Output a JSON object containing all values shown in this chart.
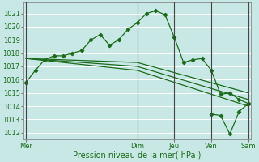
{
  "bg_color": "#c8e8e5",
  "grid_color": "#ffffff",
  "line_color": "#1a6b1a",
  "marker_color": "#1a6b1a",
  "xlabel": "Pression niveau de la mer( hPa )",
  "ylim": [
    1011.5,
    1021.8
  ],
  "yticks": [
    1012,
    1013,
    1014,
    1015,
    1016,
    1017,
    1018,
    1019,
    1020,
    1021
  ],
  "x_day_labels": [
    "Mer",
    "Dim",
    "Jeu",
    "Ven",
    "Sam"
  ],
  "x_day_positions": [
    0,
    12,
    16,
    20,
    24
  ],
  "series1_x": [
    0,
    1,
    2,
    3,
    4,
    5,
    6,
    7,
    8,
    9,
    10,
    11,
    12,
    13,
    14,
    15,
    16,
    17,
    18,
    19,
    20,
    21,
    22,
    23,
    24
  ],
  "series1_y": [
    1015.8,
    1016.7,
    1017.5,
    1017.8,
    1017.8,
    1018.0,
    1018.2,
    1019.0,
    1019.4,
    1018.6,
    1019.0,
    1019.8,
    1020.3,
    1021.0,
    1021.2,
    1020.9,
    1019.2,
    1017.3,
    1017.5,
    1017.6,
    1016.7,
    1014.9,
    1015.0,
    1014.5,
    1014.2
  ],
  "series2_x": [
    0,
    6,
    12,
    18,
    24
  ],
  "series2_y": [
    1017.6,
    1017.45,
    1017.3,
    1016.15,
    1015.0
  ],
  "series3_x": [
    0,
    6,
    12,
    18,
    24
  ],
  "series3_y": [
    1017.6,
    1017.3,
    1017.0,
    1015.75,
    1014.5
  ],
  "series4_x": [
    0,
    6,
    12,
    18,
    24
  ],
  "series4_y": [
    1017.6,
    1017.15,
    1016.7,
    1015.35,
    1014.0
  ],
  "series5_x": [
    20,
    21,
    22,
    23,
    24
  ],
  "series5_y": [
    1013.4,
    1013.3,
    1011.9,
    1013.6,
    1014.2
  ],
  "vline_positions": [
    0,
    12,
    16,
    20,
    24
  ],
  "vline_color": "#444444"
}
